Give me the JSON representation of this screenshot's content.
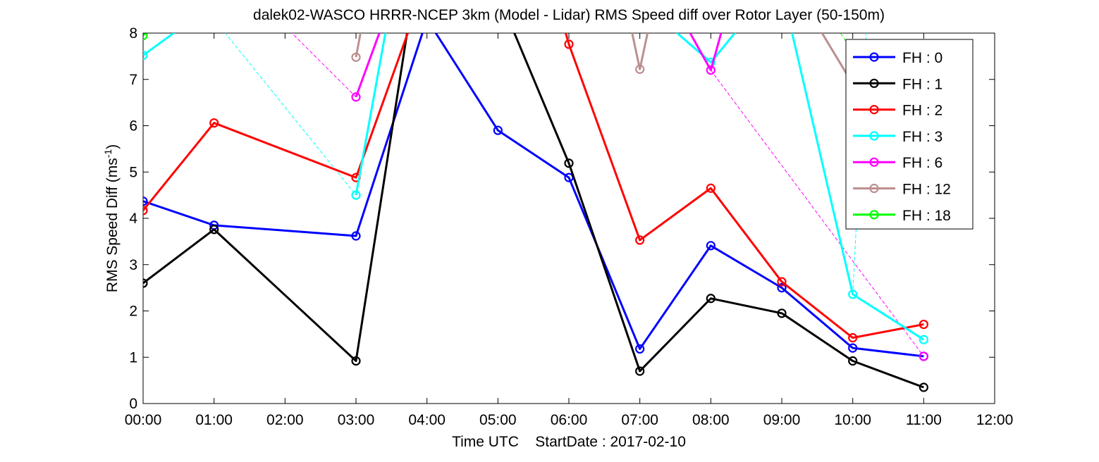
{
  "chart_data": {
    "type": "line",
    "title": "dalek02-WASCO HRRR-NCEP 3km (Model - Lidar) RMS Speed diff over Rotor Layer (50-150m)",
    "xlabel": "Time UTC    StartDate : 2017-02-10",
    "ylabel": "RMS Speed Diff (ms",
    "ylabel_sup": "-1",
    "ylabel_close": ")",
    "x_ticks": [
      "00:00",
      "01:00",
      "02:00",
      "03:00",
      "04:00",
      "05:00",
      "06:00",
      "07:00",
      "08:00",
      "09:00",
      "10:00",
      "11:00",
      "12:00"
    ],
    "y_ticks": [
      "0",
      "1",
      "2",
      "3",
      "4",
      "5",
      "6",
      "7",
      "8"
    ],
    "xlim": [
      0,
      12
    ],
    "ylim": [
      0,
      8
    ],
    "grid": false,
    "legend_position": "top-right",
    "series": [
      {
        "name": "FH : 0",
        "color": "#0000ff",
        "points": [
          [
            0,
            4.37
          ],
          [
            1,
            3.85
          ],
          [
            3,
            3.62
          ],
          [
            4,
            8.3
          ],
          [
            5,
            5.9
          ],
          [
            6,
            4.88
          ],
          [
            7,
            1.18
          ],
          [
            8,
            3.41
          ],
          [
            9,
            2.5
          ],
          [
            10,
            1.2
          ],
          [
            11,
            1.02
          ]
        ]
      },
      {
        "name": "FH : 1",
        "color": "#000000",
        "points": [
          [
            0,
            2.6
          ],
          [
            1,
            3.76
          ],
          [
            3,
            0.92
          ],
          [
            3.75,
            8.3
          ],
          [
            null,
            null
          ],
          [
            5.15,
            8.3
          ],
          [
            6,
            5.19
          ],
          [
            7,
            0.7
          ],
          [
            8,
            2.27
          ],
          [
            9,
            1.95
          ],
          [
            10,
            0.92
          ],
          [
            11,
            0.35
          ]
        ]
      },
      {
        "name": "FH : 2",
        "color": "#ff0000",
        "points": [
          [
            0,
            4.17
          ],
          [
            1,
            6.06
          ],
          [
            3,
            4.88
          ],
          [
            3.8,
            8.3
          ],
          [
            null,
            null
          ],
          [
            5.9,
            8.3
          ],
          [
            6,
            7.76
          ],
          [
            7,
            3.53
          ],
          [
            8,
            4.65
          ],
          [
            9,
            2.63
          ],
          [
            10,
            1.42
          ],
          [
            11,
            1.71
          ]
        ]
      },
      {
        "name": "FH : 3",
        "color": "#00ffff",
        "points": [
          [
            0,
            7.52
          ],
          [
            0.7,
            8.3
          ],
          [
            null,
            null
          ],
          [
            3,
            4.5
          ],
          [
            3.45,
            8.3
          ],
          [
            null,
            null
          ],
          [
            7.3,
            8.3
          ],
          [
            8,
            7.37
          ],
          [
            8.5,
            8.3
          ],
          [
            null,
            null
          ],
          [
            9.1,
            8.3
          ],
          [
            10,
            2.36
          ],
          [
            11,
            1.38
          ]
        ]
      },
      {
        "name": "FH : 6",
        "color": "#ff00ff",
        "points": [
          [
            3,
            6.62
          ],
          [
            3.4,
            8.3
          ],
          [
            null,
            null
          ],
          [
            7.6,
            8.3
          ],
          [
            8,
            7.2
          ],
          [
            8.2,
            8.3
          ],
          [
            null,
            null
          ],
          [
            11,
            1.02
          ]
        ]
      },
      {
        "name": "FH : 12",
        "color": "#bc8f8f",
        "points": [
          [
            3,
            7.48
          ],
          [
            3.1,
            8.3
          ],
          [
            null,
            null
          ],
          [
            6.85,
            8.3
          ],
          [
            7,
            7.22
          ],
          [
            7.15,
            8.3
          ],
          [
            null,
            null
          ],
          [
            9.45,
            8.3
          ],
          [
            10,
            6.9
          ]
        ]
      },
      {
        "name": "FH : 18",
        "color": "#00ff00",
        "points": [
          [
            0,
            7.95
          ],
          [
            0.2,
            8.3
          ]
        ]
      }
    ],
    "dashed_gaps": [
      {
        "color": "#0000ff",
        "from": [
          1,
          3.85
        ],
        "to": [
          3,
          3.62
        ]
      },
      {
        "color": "#000000",
        "from": [
          1,
          3.76
        ],
        "to": [
          3,
          0.92
        ]
      },
      {
        "color": "#ff0000",
        "from": [
          1,
          6.06
        ],
        "to": [
          3,
          4.88
        ]
      },
      {
        "color": "#00ffff",
        "from": [
          1,
          8.3
        ],
        "to": [
          3,
          4.5
        ]
      },
      {
        "color": "#00ffff",
        "from": [
          10,
          2.36
        ],
        "to": [
          10.2,
          8.3
        ]
      },
      {
        "color": "#ff00ff",
        "from": [
          1.9,
          8.3
        ],
        "to": [
          3,
          6.62
        ]
      },
      {
        "color": "#ff00ff",
        "from": [
          8,
          7.2
        ],
        "to": [
          11,
          1.02
        ]
      },
      {
        "color": "#00ff00",
        "from": [
          9.7,
          8.3
        ],
        "to": [
          10,
          7.6
        ]
      }
    ]
  }
}
